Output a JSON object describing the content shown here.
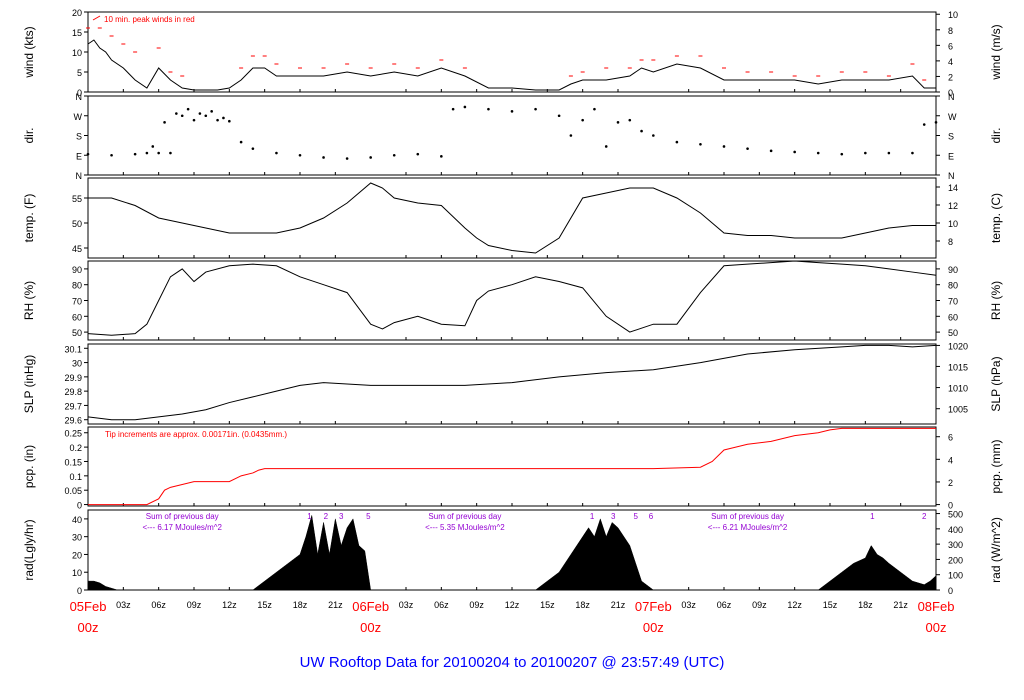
{
  "title": "UW Rooftop Data for 20100204  to  20100207 @ 23:57:49  (UTC)",
  "colors": {
    "ink": "#000000",
    "peak": "#ff0000",
    "date": "#ff0000",
    "title": "#0000ff",
    "sum": "#9400d3"
  },
  "time_axis": {
    "range_hours": [
      0,
      72
    ],
    "minor_ticks": [
      {
        "h": 3,
        "label": "03z"
      },
      {
        "h": 6,
        "label": "06z"
      },
      {
        "h": 9,
        "label": "09z"
      },
      {
        "h": 12,
        "label": "12z"
      },
      {
        "h": 15,
        "label": "15z"
      },
      {
        "h": 18,
        "label": "18z"
      },
      {
        "h": 21,
        "label": "21z"
      },
      {
        "h": 27,
        "label": "03z"
      },
      {
        "h": 30,
        "label": "06z"
      },
      {
        "h": 33,
        "label": "09z"
      },
      {
        "h": 36,
        "label": "12z"
      },
      {
        "h": 39,
        "label": "15z"
      },
      {
        "h": 42,
        "label": "18z"
      },
      {
        "h": 45,
        "label": "21z"
      },
      {
        "h": 51,
        "label": "03z"
      },
      {
        "h": 54,
        "label": "06z"
      },
      {
        "h": 57,
        "label": "09z"
      },
      {
        "h": 60,
        "label": "12z"
      },
      {
        "h": 63,
        "label": "15z"
      },
      {
        "h": 66,
        "label": "18z"
      },
      {
        "h": 69,
        "label": "21z"
      }
    ],
    "day_ticks": [
      {
        "h": 0,
        "date": "05Feb",
        "hour": "00z"
      },
      {
        "h": 24,
        "date": "06Feb",
        "hour": "00z"
      },
      {
        "h": 48,
        "date": "07Feb",
        "hour": "00z"
      },
      {
        "h": 72,
        "date": "08Feb",
        "hour": "00z"
      }
    ]
  },
  "chart_data": [
    {
      "id": "wind",
      "type": "line",
      "ylabel": "wind (kts)",
      "ylabel_right": "wind (m/s)",
      "ylim": [
        0,
        20
      ],
      "yticks": [
        0,
        5,
        10,
        15,
        20
      ],
      "right_ticks": [
        {
          "v": 0,
          "label": "0"
        },
        {
          "v": 3.89,
          "label": "2"
        },
        {
          "v": 7.78,
          "label": "4"
        },
        {
          "v": 11.66,
          "label": "6"
        },
        {
          "v": 15.55,
          "label": "8"
        },
        {
          "v": 19.44,
          "label": "10"
        }
      ],
      "annotation": "10 min. peak winds in red",
      "series": [
        {
          "role": "wind",
          "x": [
            0,
            0.5,
            1,
            1.5,
            2,
            3,
            4,
            5,
            6,
            7,
            8,
            9,
            10,
            11,
            12,
            13,
            14,
            15,
            16,
            18,
            20,
            22,
            24,
            26,
            28,
            30,
            32,
            34,
            36,
            38,
            40,
            41,
            42,
            44,
            46,
            47,
            48,
            50,
            52,
            54,
            56,
            58,
            60,
            62,
            64,
            66,
            68,
            70,
            71,
            72
          ],
          "y": [
            12,
            13,
            11,
            10,
            8,
            6,
            3,
            1,
            6,
            3,
            1,
            0.5,
            0.5,
            0.5,
            1,
            3,
            6,
            6,
            4,
            4,
            4,
            5,
            4,
            5,
            4,
            6,
            4,
            1,
            1,
            0.5,
            0.5,
            2,
            3,
            3,
            4,
            6,
            5,
            7,
            6,
            3,
            3,
            3,
            3,
            2,
            3,
            3,
            3,
            4,
            1,
            1
          ]
        },
        {
          "role": "peak",
          "x": [
            0,
            1,
            2,
            3,
            4,
            6,
            7,
            8,
            13,
            14,
            15,
            16,
            18,
            20,
            22,
            24,
            26,
            28,
            30,
            32,
            41,
            42,
            44,
            46,
            47,
            48,
            50,
            52,
            54,
            56,
            58,
            60,
            62,
            64,
            66,
            68,
            70,
            71
          ],
          "y": [
            16,
            16,
            14,
            12,
            10,
            11,
            5,
            4,
            6,
            9,
            9,
            7,
            6,
            6,
            7,
            6,
            7,
            6,
            8,
            6,
            4,
            5,
            6,
            6,
            8,
            8,
            9,
            9,
            6,
            5,
            5,
            4,
            4,
            5,
            5,
            4,
            7,
            3
          ]
        }
      ]
    },
    {
      "id": "dir",
      "type": "scatter",
      "ylabel": "dir.",
      "ylabel_right": "dir.",
      "ylim": [
        0,
        360
      ],
      "yticks": [
        {
          "v": 0,
          "label": "N"
        },
        {
          "v": 90,
          "label": "E"
        },
        {
          "v": 180,
          "label": "S"
        },
        {
          "v": 270,
          "label": "W"
        },
        {
          "v": 360,
          "label": "N"
        }
      ],
      "series": [
        {
          "x": [
            0,
            2,
            4,
            5,
            5.5,
            6,
            6.5,
            7,
            7.5,
            8,
            8.5,
            9,
            9.5,
            10,
            10.5,
            11,
            11.5,
            12,
            13,
            14,
            16,
            18,
            20,
            22,
            24,
            26,
            28,
            30,
            31,
            32,
            34,
            36,
            38,
            40,
            41,
            42,
            43,
            44,
            45,
            46,
            47,
            48,
            50,
            52,
            54,
            56,
            58,
            60,
            62,
            64,
            66,
            68,
            70,
            71,
            72
          ],
          "y": [
            95,
            90,
            95,
            100,
            130,
            100,
            240,
            100,
            280,
            270,
            300,
            250,
            280,
            270,
            290,
            250,
            260,
            245,
            150,
            120,
            100,
            90,
            80,
            75,
            80,
            90,
            95,
            85,
            300,
            310,
            300,
            290,
            300,
            270,
            180,
            250,
            300,
            130,
            240,
            250,
            200,
            180,
            150,
            140,
            130,
            120,
            110,
            105,
            100,
            95,
            100,
            100,
            100,
            230,
            240
          ]
        }
      ]
    },
    {
      "id": "temp",
      "type": "line",
      "ylabel": "temp. (F)",
      "ylabel_right": "temp. (C)",
      "ylim": [
        43,
        59
      ],
      "yticks": [
        45,
        50,
        55
      ],
      "right_ticks": [
        {
          "v": 46.4,
          "label": "8"
        },
        {
          "v": 50.0,
          "label": "10"
        },
        {
          "v": 53.6,
          "label": "12"
        },
        {
          "v": 57.2,
          "label": "14"
        }
      ],
      "series": [
        {
          "x": [
            0,
            2,
            4,
            6,
            8,
            10,
            12,
            14,
            16,
            18,
            20,
            22,
            24,
            25,
            26,
            28,
            30,
            32,
            33,
            34,
            36,
            38,
            40,
            42,
            44,
            46,
            48,
            50,
            52,
            54,
            56,
            58,
            60,
            62,
            64,
            66,
            68,
            70,
            72
          ],
          "y": [
            55,
            55,
            53.5,
            51,
            50,
            49,
            48,
            48,
            48,
            49,
            51,
            54,
            58,
            57,
            55,
            54,
            53.5,
            49,
            47,
            45.5,
            44.5,
            44,
            47,
            55,
            56,
            57,
            57,
            55,
            52,
            48,
            47.5,
            47.5,
            47,
            47,
            47,
            48,
            49,
            49.5,
            49.5
          ]
        }
      ]
    },
    {
      "id": "rh",
      "type": "line",
      "ylabel": "RH (%)",
      "ylabel_right": "RH (%)",
      "ylim": [
        45,
        95
      ],
      "yticks": [
        50,
        60,
        70,
        80,
        90
      ],
      "right_ticks": [
        {
          "v": 50,
          "label": "50"
        },
        {
          "v": 60,
          "label": "60"
        },
        {
          "v": 70,
          "label": "70"
        },
        {
          "v": 80,
          "label": "80"
        },
        {
          "v": 90,
          "label": "90"
        }
      ],
      "series": [
        {
          "x": [
            0,
            2,
            4,
            5,
            6,
            7,
            8,
            9,
            10,
            12,
            14,
            16,
            18,
            20,
            22,
            24,
            25,
            26,
            28,
            30,
            32,
            33,
            34,
            36,
            38,
            40,
            42,
            44,
            46,
            48,
            50,
            52,
            54,
            56,
            58,
            60,
            62,
            64,
            66,
            68,
            70,
            72
          ],
          "y": [
            49,
            48,
            49,
            55,
            70,
            85,
            90,
            82,
            88,
            92,
            93,
            92,
            85,
            80,
            75,
            55,
            52,
            56,
            60,
            55,
            54,
            70,
            76,
            80,
            85,
            82,
            78,
            60,
            50,
            55,
            55,
            75,
            92,
            93,
            94,
            95,
            94,
            93,
            92,
            90,
            88,
            86
          ]
        }
      ]
    },
    {
      "id": "slp",
      "type": "line",
      "ylabel": "SLP (inHg)",
      "ylabel_right": "SLP (hPa)",
      "ylim": [
        29.57,
        30.13
      ],
      "yticks": [
        29.6,
        29.7,
        29.8,
        29.9,
        30.0,
        30.1
      ],
      "right_ticks": [
        {
          "v": 29.677,
          "label": "1005"
        },
        {
          "v": 29.825,
          "label": "1010"
        },
        {
          "v": 29.973,
          "label": "1015"
        },
        {
          "v": 30.12,
          "label": "1020"
        }
      ],
      "series": [
        {
          "x": [
            0,
            2,
            4,
            6,
            8,
            10,
            12,
            14,
            16,
            18,
            20,
            22,
            24,
            28,
            32,
            36,
            40,
            44,
            48,
            52,
            56,
            60,
            64,
            66,
            68,
            70,
            72
          ],
          "y": [
            29.62,
            29.6,
            29.6,
            29.62,
            29.64,
            29.67,
            29.72,
            29.76,
            29.8,
            29.84,
            29.86,
            29.85,
            29.84,
            29.84,
            29.84,
            29.86,
            29.9,
            29.93,
            29.95,
            30.0,
            30.06,
            30.09,
            30.11,
            30.12,
            30.12,
            30.11,
            30.12
          ]
        }
      ]
    },
    {
      "id": "pcp",
      "type": "line",
      "ylabel": "pcp. (in)",
      "ylabel_right": "pcp. (mm)",
      "ylim": [
        -0.005,
        0.27
      ],
      "yticks": [
        0,
        0.05,
        0.1,
        0.15,
        0.2,
        0.25
      ],
      "right_ticks": [
        {
          "v": 0,
          "label": "0"
        },
        {
          "v": 0.0787,
          "label": "2"
        },
        {
          "v": 0.1575,
          "label": "4"
        },
        {
          "v": 0.2362,
          "label": "6"
        }
      ],
      "annotation": "Tip increments are approx. 0.00171in. (0.0435mm.)",
      "series": [
        {
          "x": [
            0,
            5,
            6,
            6.5,
            7,
            8,
            9,
            10,
            11,
            12,
            13,
            14,
            14.5,
            15,
            24,
            48,
            52,
            53,
            54,
            55,
            56,
            58,
            60,
            62,
            63,
            64,
            72
          ],
          "y": [
            0,
            0,
            0.02,
            0.05,
            0.06,
            0.07,
            0.08,
            0.08,
            0.08,
            0.08,
            0.1,
            0.11,
            0.12,
            0.125,
            0.125,
            0.125,
            0.13,
            0.15,
            0.19,
            0.2,
            0.21,
            0.22,
            0.24,
            0.25,
            0.26,
            0.265,
            0.265
          ]
        }
      ]
    },
    {
      "id": "rad",
      "type": "area",
      "ylabel": "rad(Lgly/hr)",
      "ylabel_right": "rad (W/m^2)",
      "ylim": [
        0,
        45
      ],
      "yticks": [
        0,
        10,
        20,
        30,
        40
      ],
      "right_ticks": [
        {
          "v": 0,
          "label": "0"
        },
        {
          "v": 8.6,
          "label": "100"
        },
        {
          "v": 17.2,
          "label": "200"
        },
        {
          "v": 25.8,
          "label": "300"
        },
        {
          "v": 34.4,
          "label": "400"
        },
        {
          "v": 43.0,
          "label": "500"
        }
      ],
      "series": [
        {
          "x": [
            0,
            0.5,
            1,
            1.5,
            2,
            2.5,
            14,
            15,
            16,
            17,
            18,
            18.5,
            19,
            19.5,
            20,
            20.5,
            21,
            21.5,
            22,
            22.5,
            23,
            23.5,
            24,
            38,
            39,
            40,
            41,
            42,
            42.5,
            43,
            43.5,
            44,
            44.5,
            45,
            45.5,
            46,
            46.5,
            47,
            48,
            62,
            63,
            64,
            65,
            66,
            66.5,
            67,
            67.5,
            68,
            69,
            70,
            71,
            71.5,
            72
          ],
          "y": [
            5,
            5,
            4,
            2,
            1,
            0,
            0,
            5,
            10,
            15,
            20,
            30,
            42,
            20,
            38,
            20,
            40,
            25,
            35,
            40,
            25,
            22,
            0,
            0,
            5,
            10,
            20,
            30,
            35,
            30,
            40,
            30,
            38,
            35,
            30,
            25,
            15,
            5,
            0,
            0,
            5,
            10,
            15,
            18,
            25,
            20,
            18,
            15,
            10,
            5,
            3,
            5,
            8
          ]
        }
      ],
      "top_labels": [
        {
          "h": 18.8,
          "label": "1"
        },
        {
          "h": 20.2,
          "label": "2"
        },
        {
          "h": 21.5,
          "label": "3"
        },
        {
          "h": 23.8,
          "label": "5"
        },
        {
          "h": 42.8,
          "label": "1"
        },
        {
          "h": 44.6,
          "label": "3"
        },
        {
          "h": 46.5,
          "label": "5"
        },
        {
          "h": 47.8,
          "label": "6"
        },
        {
          "h": 66.6,
          "label": "1"
        },
        {
          "h": 71.0,
          "label": "2"
        }
      ],
      "sums": [
        {
          "h": 8,
          "line1": "Sum of previous day",
          "line2": "<--- 6.17  MJoules/m^2"
        },
        {
          "h": 32,
          "line1": "Sum of previous day",
          "line2": "<--- 5.35  MJoules/m^2"
        },
        {
          "h": 56,
          "line1": "Sum of previous day",
          "line2": "<--- 6.21  MJoules/m^2"
        }
      ]
    }
  ]
}
